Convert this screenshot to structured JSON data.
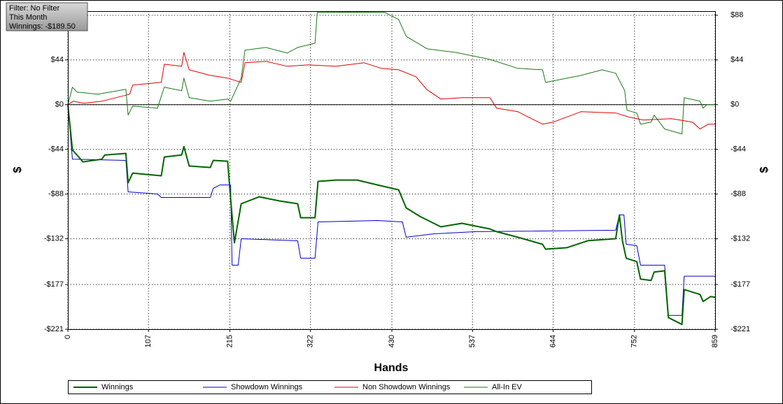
{
  "chart_data": {
    "type": "line",
    "info": [
      "Filter: No Filter",
      "This Month",
      "Winnings: -$189.50"
    ],
    "x_label": "Hands",
    "y_label": "$",
    "xlim": [
      0,
      859
    ],
    "xticks": [
      0,
      107,
      215,
      322,
      430,
      537,
      644,
      752,
      859
    ],
    "ylim": [
      -221,
      92
    ],
    "yticks": [
      {
        "value": 88,
        "label": "$88"
      },
      {
        "value": 44,
        "label": "$44"
      },
      {
        "value": 0,
        "label": "$0"
      },
      {
        "value": -44,
        "label": "-$44"
      },
      {
        "value": -88,
        "label": "-$88"
      },
      {
        "value": -132,
        "label": "-$132"
      },
      {
        "value": -177,
        "label": "-$177"
      },
      {
        "value": -221,
        "label": "-$221"
      }
    ],
    "grid": true,
    "legend": "bottom",
    "series": [
      {
        "name": "Winnings",
        "color": "#006400",
        "width": 2,
        "x": [
          0,
          6,
          12,
          20,
          45,
          49,
          77,
          80,
          86,
          105,
          124,
          128,
          151,
          154,
          161,
          189,
          193,
          212,
          216,
          221,
          230,
          254,
          281,
          305,
          309,
          328,
          332,
          356,
          384,
          411,
          439,
          449,
          467,
          495,
          523,
          560,
          569,
          597,
          630,
          634,
          662,
          690,
          727,
          732,
          736,
          741,
          755,
          760,
          774,
          778,
          792,
          797,
          815,
          818,
          839,
          843,
          853,
          859
        ],
        "values": [
          0,
          -44.6,
          -49.5,
          -56.3,
          -53.6,
          -49.5,
          -48,
          -76.9,
          -67.3,
          -68.7,
          -70,
          -51.5,
          -49.5,
          -41.2,
          -60.4,
          -61.8,
          -54.9,
          -55.6,
          -92.7,
          -136,
          -97.5,
          -90.7,
          -94.8,
          -97.5,
          -111.3,
          -111.3,
          -75.5,
          -74.2,
          -74.2,
          -79,
          -83.8,
          -101.6,
          -109.9,
          -120.2,
          -116.8,
          -122.3,
          -125,
          -130.5,
          -137.4,
          -142.2,
          -140.8,
          -133.9,
          -131.9,
          -108.5,
          -133.9,
          -151.1,
          -154.5,
          -171.7,
          -173,
          -164.8,
          -163.5,
          -209.5,
          -216.3,
          -182,
          -186.8,
          -193.7,
          -188.9,
          -189.5
        ]
      },
      {
        "name": "Showdown Winnings",
        "color": "#0000cc",
        "width": 1,
        "x": [
          0,
          6,
          77,
          80,
          119,
          124,
          189,
          193,
          202,
          216,
          218,
          226,
          230,
          305,
          309,
          328,
          332,
          411,
          444,
          449,
          486,
          542,
          727,
          732,
          738,
          741,
          755,
          760,
          792,
          797,
          815,
          818,
          859
        ],
        "values": [
          0,
          -53.6,
          -54.9,
          -85.8,
          -87.9,
          -91.3,
          -91.3,
          -82.4,
          -79,
          -79,
          -158,
          -158,
          -131.9,
          -134,
          -151.1,
          -151.1,
          -115.4,
          -114,
          -115.4,
          -130.5,
          -127.1,
          -125,
          -123.6,
          -108.5,
          -108.5,
          -137.4,
          -138.7,
          -158,
          -158,
          -207.4,
          -207.4,
          -168.8,
          -168.8
        ]
      },
      {
        "name": "Non Showdown Winnings",
        "color": "#e00000",
        "width": 1,
        "x": [
          0,
          7,
          21,
          45,
          82,
          86,
          124,
          128,
          151,
          154,
          161,
          189,
          212,
          230,
          235,
          263,
          291,
          319,
          356,
          393,
          416,
          439,
          462,
          476,
          495,
          523,
          560,
          569,
          597,
          630,
          644,
          681,
          727,
          746,
          764,
          801,
          829,
          839,
          850,
          859
        ],
        "values": [
          0,
          3.4,
          1.4,
          3.4,
          10.3,
          19.2,
          22,
          39.8,
          37.8,
          51.5,
          34.3,
          28.8,
          26.1,
          22,
          41.2,
          42.6,
          37.8,
          39.1,
          37.8,
          41.2,
          35.7,
          34.3,
          27.5,
          15.1,
          5.5,
          6.9,
          6.9,
          -3.4,
          -6.9,
          -19.2,
          -17.2,
          -6.9,
          -8.2,
          -12.4,
          -15.1,
          -13.7,
          -17.2,
          -24,
          -19.2,
          -19.2
        ]
      },
      {
        "name": "All-In EV",
        "color": "#1a7a1a",
        "width": 1,
        "x": [
          0,
          6,
          12,
          40,
          77,
          80,
          86,
          119,
          124,
          128,
          151,
          154,
          161,
          189,
          212,
          216,
          230,
          235,
          263,
          291,
          305,
          328,
          331,
          375,
          421,
          439,
          449,
          477,
          514,
          560,
          597,
          630,
          634,
          681,
          709,
          727,
          739,
          742,
          755,
          760,
          774,
          778,
          792,
          815,
          818,
          839,
          843,
          848,
          859
        ],
        "values": [
          0,
          17.2,
          12.4,
          10.3,
          15.1,
          -10.3,
          -1.4,
          -3.4,
          8.2,
          17.2,
          13.7,
          26.1,
          6.9,
          3.4,
          5.5,
          3.4,
          26.1,
          53.6,
          56.3,
          50.8,
          56.3,
          60.4,
          90.7,
          91,
          90.7,
          83.8,
          67.3,
          54.9,
          51.5,
          44.6,
          35.7,
          34.3,
          21.9,
          28.8,
          34.3,
          30.9,
          13.7,
          -5.5,
          -8.2,
          -19.2,
          -17.2,
          -10.3,
          -24,
          -28.8,
          6.9,
          3.4,
          -3.4,
          0,
          0
        ]
      }
    ]
  }
}
